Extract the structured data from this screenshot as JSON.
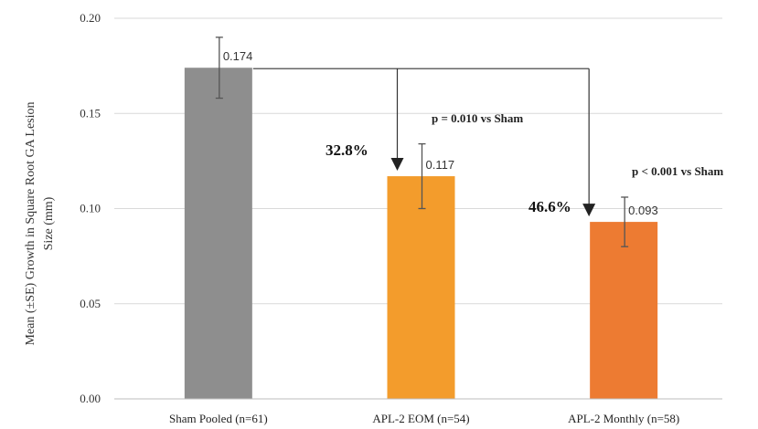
{
  "chart_data": {
    "type": "bar",
    "categories": [
      "Sham Pooled (n=61)",
      "APL-2 EOM (n=54)",
      "APL-2 Monthly (n=58)"
    ],
    "values": [
      0.174,
      0.117,
      0.093
    ],
    "errors": [
      0.016,
      0.017,
      0.013
    ],
    "data_labels": [
      "0.174",
      "0.117",
      "0.093"
    ],
    "colors": [
      "#8e8e8e",
      "#f39c2c",
      "#ed7b32"
    ],
    "ylabel_lines": [
      "Mean (±SE) Growth in Square Root GA Lesion",
      "Size (mm)"
    ],
    "ylim": [
      0,
      0.2
    ],
    "yticks": [
      "0.00",
      "0.05",
      "0.10",
      "0.15",
      "0.20"
    ],
    "grid": true,
    "annotations": {
      "eom_reduction": "32.8%",
      "monthly_reduction": "46.6%",
      "eom_pvalue": "p = 0.010 vs Sham",
      "monthly_pvalue": "p < 0.001 vs Sham"
    }
  }
}
